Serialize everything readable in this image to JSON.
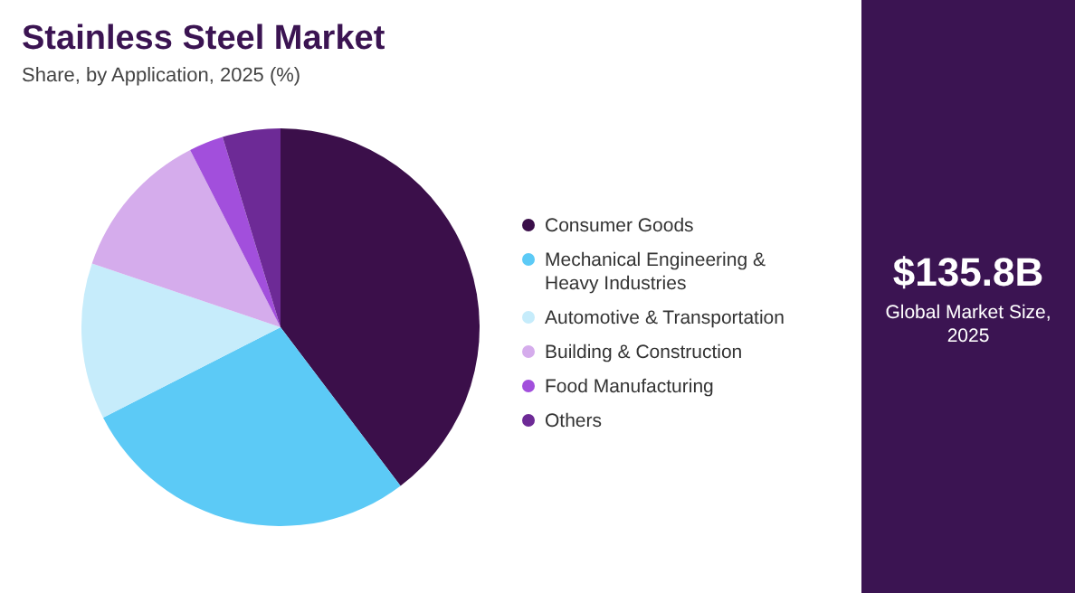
{
  "chart_data": {
    "type": "pie",
    "title": "Stainless Steel Market",
    "subtitle": "Share, by Application, 2025 (%)",
    "categories": [
      "Consumer Goods",
      "Mechanical Engineering & Heavy Industries",
      "Automotive & Transportation",
      "Building & Construction",
      "Food Manufacturing",
      "Others"
    ],
    "values": [
      39.7,
      27.8,
      12.7,
      12.3,
      2.8,
      4.7
    ],
    "colors": [
      "#3b0f4a",
      "#5ccaf6",
      "#c6ecfb",
      "#d5acec",
      "#a24fdc",
      "#6d2a96"
    ],
    "legend": "right",
    "annotations": [
      "$135.8B",
      "Global Market Size, 2025"
    ]
  }
}
